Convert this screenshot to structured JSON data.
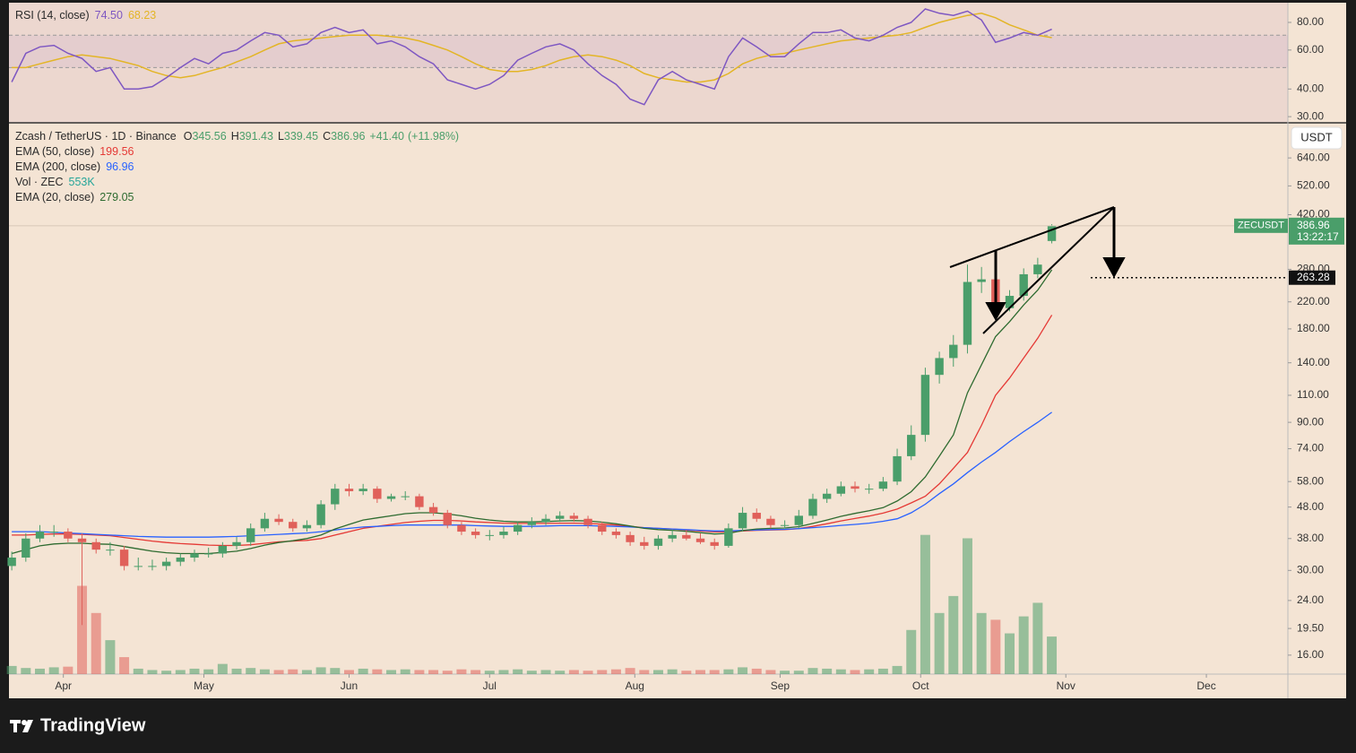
{
  "chart_data": [
    {
      "type": "line",
      "title": "RSI (14, close)",
      "series": [
        {
          "color": "#7e57c2",
          "last_label": "74.50",
          "values": [
            43,
            58,
            62,
            63,
            58,
            55,
            48,
            50,
            40,
            40,
            41,
            45,
            50,
            55,
            52,
            58,
            60,
            66,
            72,
            70,
            62,
            64,
            72,
            76,
            72,
            74,
            64,
            66,
            62,
            56,
            52,
            44,
            42,
            40,
            42,
            46,
            54,
            58,
            62,
            64,
            60,
            52,
            46,
            42,
            36,
            34,
            44,
            48,
            44,
            42,
            40,
            56,
            68,
            62,
            56,
            56,
            64,
            72,
            72,
            74,
            68,
            66,
            70,
            76,
            80,
            92,
            88,
            86,
            90,
            82,
            65,
            68,
            72,
            70,
            74.5
          ]
        },
        {
          "color": "#e3b526",
          "values": [
            50,
            50,
            52,
            54,
            56,
            57,
            56,
            55,
            53,
            51,
            48,
            46,
            45,
            46,
            48,
            50,
            53,
            56,
            60,
            64,
            66,
            67,
            68,
            69,
            70,
            70,
            70,
            69,
            68,
            66,
            63,
            60,
            56,
            52,
            49,
            48,
            48,
            49,
            51,
            54,
            56,
            57,
            56,
            54,
            51,
            47,
            45,
            44,
            43,
            43,
            44,
            47,
            52,
            55,
            57,
            58,
            60,
            62,
            64,
            66,
            67,
            68,
            69,
            70,
            72,
            76,
            80,
            83,
            86,
            88,
            84,
            78,
            74,
            70,
            68.23
          ]
        }
      ],
      "log_scale": true,
      "ylim": [
        28.4,
        96.4
      ],
      "levels": [
        70,
        50
      ],
      "yticks": [
        {
          "value": 30,
          "label": "30.00"
        },
        {
          "value": 40,
          "label": "40.00"
        },
        {
          "value": 60,
          "label": "60.00"
        },
        {
          "value": 80,
          "label": "80.00"
        }
      ]
    },
    {
      "type": "candlestick",
      "symbol": "Zcash / TetherUS · 1D · Binance",
      "ohlc_prefixes": [
        "O",
        "H",
        "L",
        "C"
      ],
      "up_color": "#4a9e6a",
      "down_color": "#e0605a",
      "open": [
        31,
        33,
        38,
        40,
        40,
        38,
        37,
        35,
        35,
        31,
        31,
        31,
        32,
        33,
        34,
        34,
        36,
        37,
        41,
        44,
        43,
        41,
        42,
        49,
        55,
        54,
        55,
        51,
        52,
        52,
        48,
        46,
        42,
        40,
        39,
        39,
        40,
        42,
        43,
        44,
        45,
        44,
        42,
        40,
        39,
        37,
        36,
        38,
        39,
        38,
        37,
        36,
        41,
        46,
        44,
        42,
        42,
        45,
        51,
        53,
        56,
        55,
        55,
        58,
        70,
        82,
        128,
        145,
        160,
        255,
        260,
        210,
        230,
        270,
        345.56
      ],
      "high": [
        34.5,
        39.5,
        42,
        42,
        41,
        39.5,
        38,
        37,
        36,
        33,
        32.5,
        33,
        34,
        35,
        35.5,
        37,
        38.5,
        42.5,
        46,
        45.5,
        44,
        43.5,
        50.5,
        57,
        57,
        57,
        56,
        53,
        54,
        53,
        49.5,
        47,
        43,
        41,
        40.5,
        41.5,
        43,
        44.5,
        45.5,
        46.5,
        46,
        45,
        43,
        41,
        40,
        38.5,
        39,
        40.5,
        40.5,
        39.5,
        38,
        42.5,
        48,
        47.5,
        45,
        43.5,
        47,
        53,
        55,
        58,
        58,
        57,
        60,
        74,
        88,
        135,
        152,
        172,
        290,
        285,
        265,
        240,
        282,
        305,
        391.43
      ],
      "low": [
        30,
        32,
        37,
        38.5,
        37,
        20,
        34,
        33.5,
        30,
        30,
        30,
        30,
        31,
        32,
        33,
        33,
        35,
        36,
        40,
        42,
        40,
        40,
        41,
        47,
        52,
        52.5,
        49.5,
        50,
        50.5,
        47,
        45,
        41,
        39,
        38,
        37.5,
        38,
        39,
        41,
        42,
        43,
        43,
        41,
        39,
        38,
        36,
        35,
        35,
        37,
        37.5,
        36.5,
        35,
        35.5,
        40,
        43,
        41,
        41,
        41,
        44,
        49.5,
        52,
        53.5,
        53,
        54,
        56.5,
        68,
        78,
        120,
        136,
        150,
        235,
        195,
        205,
        222,
        262,
        339.45
      ],
      "close": [
        33,
        38,
        40,
        40,
        38,
        37,
        35,
        35,
        31,
        31,
        31,
        32,
        33,
        34,
        34,
        36,
        37,
        41,
        44,
        43,
        41,
        42,
        49,
        55,
        54,
        55,
        51,
        52,
        52,
        48,
        46,
        42,
        40,
        39,
        39,
        40,
        42,
        43,
        44,
        45,
        44,
        42,
        40,
        39,
        37,
        36,
        38,
        39,
        38,
        37,
        36,
        41,
        46,
        44,
        42,
        42,
        45,
        51,
        53,
        56,
        55,
        55,
        58,
        70,
        82,
        128,
        145,
        160,
        255,
        260,
        210,
        230,
        270,
        290,
        386.96
      ],
      "change": {
        "value": 41.4,
        "label": "+41.40"
      },
      "change_pct": {
        "value": 11.98,
        "label": "(+11.98%)"
      },
      "overlays": [
        {
          "name": "EMA (50, close)",
          "color": "#e53935",
          "values": [
            39,
            39,
            39.2,
            39.3,
            39.3,
            39.2,
            39,
            38.8,
            38.3,
            37.8,
            37.3,
            36.9,
            36.6,
            36.4,
            36.2,
            36.1,
            36.1,
            36.3,
            36.7,
            37.1,
            37.3,
            37.5,
            38,
            39,
            40,
            41,
            41.6,
            42.2,
            42.8,
            43.2,
            43.5,
            43.5,
            43.3,
            43,
            42.8,
            42.6,
            42.5,
            42.5,
            42.5,
            42.6,
            42.6,
            42.5,
            42.3,
            42,
            41.6,
            41.2,
            41,
            40.8,
            40.5,
            40.2,
            39.9,
            39.9,
            40.2,
            40.4,
            40.5,
            40.6,
            40.9,
            41.6,
            42.4,
            43.3,
            44.1,
            44.9,
            45.9,
            47.3,
            49.5,
            52,
            57,
            64,
            72,
            88,
            110,
            125,
            145,
            168,
            199.56
          ]
        },
        {
          "name": "EMA (200, close)",
          "color": "#2962ff",
          "values": [
            40,
            40,
            40,
            39.8,
            39.6,
            39.4,
            39.2,
            39,
            38.8,
            38.6,
            38.5,
            38.4,
            38.4,
            38.4,
            38.4,
            38.5,
            38.6,
            38.8,
            39,
            39.2,
            39.4,
            39.6,
            40,
            40.5,
            41,
            41.4,
            41.6,
            41.8,
            42,
            42,
            42,
            42,
            42,
            41.8,
            41.7,
            41.6,
            41.6,
            41.6,
            41.7,
            41.8,
            41.8,
            41.8,
            41.7,
            41.6,
            41.4,
            41.2,
            41,
            40.8,
            40.6,
            40.4,
            40.2,
            40.2,
            40.4,
            40.5,
            40.6,
            40.7,
            40.9,
            41.2,
            41.5,
            41.9,
            42.2,
            42.6,
            43.2,
            44,
            46,
            49,
            53,
            57,
            62,
            67,
            72,
            78,
            84,
            90,
            96.96
          ]
        },
        {
          "name": "EMA (20, close)",
          "color": "#2e6b30",
          "values": [
            34,
            35,
            36,
            36.5,
            36.7,
            36.7,
            36.5,
            36.4,
            35.8,
            35.2,
            34.6,
            34.2,
            34,
            34,
            34,
            34.3,
            34.6,
            35.3,
            36.2,
            36.9,
            37.4,
            38,
            39,
            40.8,
            42.2,
            43.6,
            44.3,
            45,
            45.7,
            46,
            46,
            45.6,
            45,
            44.2,
            43.6,
            43.2,
            43,
            43,
            43.1,
            43.3,
            43.4,
            43.3,
            42.9,
            42.4,
            41.7,
            41,
            40.6,
            40.4,
            40.1,
            39.7,
            39.3,
            39.5,
            40.3,
            40.8,
            41,
            41.1,
            41.5,
            42.5,
            43.6,
            44.8,
            45.8,
            46.7,
            47.8,
            50.2,
            53.8,
            60,
            70,
            82,
            112,
            138,
            170,
            190,
            215,
            240,
            279.05
          ]
        }
      ],
      "volume": {
        "name": "Vol · ZEC",
        "color": "#26a69a",
        "value_label": "553K",
        "vlim": [
          0,
          2640000
        ],
        "values": [
          120000,
          90000,
          80000,
          100000,
          110000,
          1300000,
          900000,
          500000,
          250000,
          80000,
          60000,
          50000,
          60000,
          80000,
          70000,
          150000,
          80000,
          90000,
          70000,
          60000,
          70000,
          60000,
          100000,
          90000,
          60000,
          80000,
          70000,
          60000,
          70000,
          60000,
          60000,
          50000,
          70000,
          60000,
          50000,
          60000,
          70000,
          50000,
          60000,
          50000,
          60000,
          50000,
          60000,
          70000,
          90000,
          60000,
          60000,
          70000,
          50000,
          60000,
          60000,
          70000,
          100000,
          80000,
          60000,
          50000,
          50000,
          90000,
          80000,
          70000,
          60000,
          70000,
          80000,
          120000,
          650000,
          2050000,
          900000,
          1150000,
          2000000,
          900000,
          800000,
          600000,
          850000,
          1050000,
          553000
        ]
      },
      "log_scale": true,
      "ylim": [
        13.9,
        814
      ],
      "yticks": [
        {
          "value": 16,
          "label": "16.00"
        },
        {
          "value": 19.5,
          "label": "19.50"
        },
        {
          "value": 24,
          "label": "24.00"
        },
        {
          "value": 30,
          "label": "30.00"
        },
        {
          "value": 38,
          "label": "38.00"
        },
        {
          "value": 48,
          "label": "48.00"
        },
        {
          "value": 58,
          "label": "58.00"
        },
        {
          "value": 74,
          "label": "74.00"
        },
        {
          "value": 90,
          "label": "90.00"
        },
        {
          "value": 110,
          "label": "110.00"
        },
        {
          "value": 140,
          "label": "140.00"
        },
        {
          "value": 180,
          "label": "180.00"
        },
        {
          "value": 220,
          "label": "220.00"
        },
        {
          "value": 280,
          "label": "280.00"
        },
        {
          "value": 420,
          "label": "420.00"
        },
        {
          "value": 520,
          "label": "520.00"
        },
        {
          "value": 640,
          "label": "640.00"
        }
      ],
      "xlim": [
        -0.2,
        90.8
      ],
      "xticks": [
        {
          "value": 3.67,
          "label": "Apr"
        },
        {
          "value": 13.67,
          "label": "May"
        },
        {
          "value": 24,
          "label": "Jun"
        },
        {
          "value": 34,
          "label": "Jul"
        },
        {
          "value": 44.33,
          "label": "Aug"
        },
        {
          "value": 54.67,
          "label": "Sep"
        },
        {
          "value": 64.67,
          "label": "Oct"
        },
        {
          "value": 75,
          "label": "Nov"
        },
        {
          "value": 85,
          "label": "Dec"
        }
      ],
      "currency": "USDT",
      "price_tag": "ZECUSDT",
      "countdown": "13:22:17",
      "target": 263.28
    }
  ],
  "brand": "TradingView"
}
